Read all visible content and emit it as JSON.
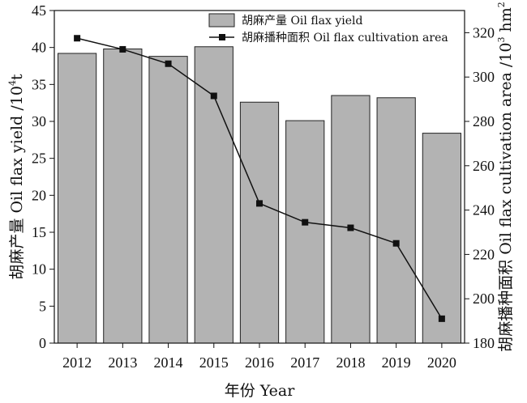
{
  "chart_data": {
    "type": "bar",
    "categories": [
      "2012",
      "2013",
      "2014",
      "2015",
      "2016",
      "2017",
      "2018",
      "2019",
      "2020"
    ],
    "series": [
      {
        "name": "胡麻产量 Oil flax yield",
        "type": "bar",
        "axis": "left",
        "values": [
          39.2,
          39.8,
          38.8,
          40.1,
          32.6,
          30.1,
          33.5,
          33.2,
          28.4
        ]
      },
      {
        "name": "胡麻播种面积 Oil flax cultivation area",
        "type": "line",
        "axis": "right",
        "values": [
          317.5,
          312.5,
          306,
          291.5,
          243,
          234.5,
          232,
          225,
          191
        ]
      }
    ],
    "xlabel": "年份 Year",
    "ylabel_left": {
      "main": "胡麻产量 Oil flax yield /10",
      "sup": "4",
      "tail": "t"
    },
    "ylabel_right": {
      "main": "胡麻播种面积 Oil flax cultivation area /10",
      "sup": "3",
      "tail": " hm",
      "sup2": "2"
    },
    "ylim_left": [
      0,
      45
    ],
    "yticks_left": [
      "0",
      "5",
      "10",
      "15",
      "20",
      "25",
      "30",
      "35",
      "40",
      "45"
    ],
    "ylim_right": [
      180,
      330
    ],
    "yticks_right": [
      "180",
      "200",
      "220",
      "240",
      "260",
      "280",
      "300",
      "320"
    ],
    "grid": false,
    "legend_position": "top-right",
    "colors": {
      "bar_fill": "#b3b3b3",
      "bar_stroke": "#222222",
      "line": "#111111",
      "marker": "#111111"
    }
  }
}
